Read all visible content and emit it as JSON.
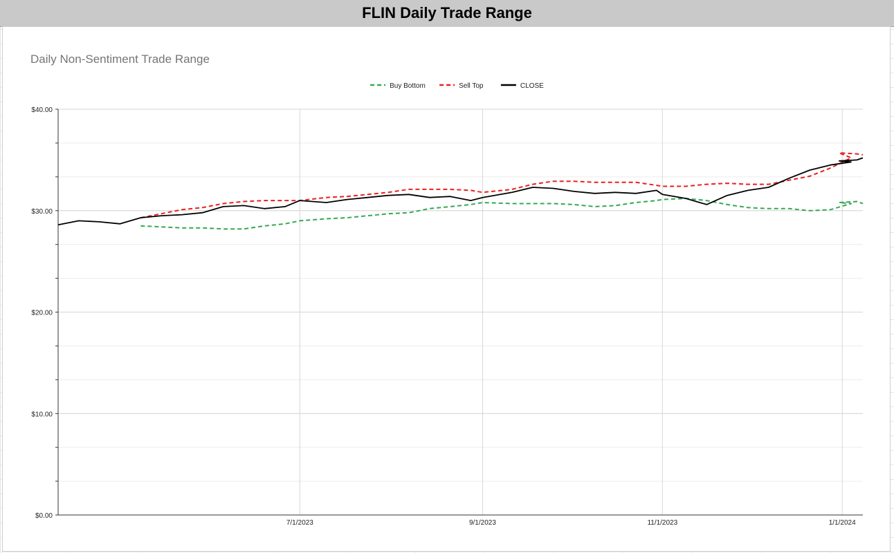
{
  "sheet_title": "FLIN Daily Trade Range",
  "chart_data": {
    "type": "line",
    "title": "Daily Non-Sentiment Trade Range",
    "xlabel": "",
    "ylabel": "",
    "ylim": [
      0,
      40
    ],
    "xlim": [
      "2023-04-10",
      "2024-01-08"
    ],
    "y_ticks": [
      0,
      10,
      20,
      30,
      40
    ],
    "y_tick_labels": [
      "$0.00",
      "$10.00",
      "$20.00",
      "$30.00",
      "$40.00"
    ],
    "x_ticks": [
      "2023-07-01",
      "2023-09-01",
      "2023-11-01",
      "2024-01-01"
    ],
    "x_tick_labels": [
      "7/1/2023",
      "9/1/2023",
      "11/1/2023",
      "1/1/2024"
    ],
    "grid": true,
    "legend_position": "top",
    "series": [
      {
        "name": "Buy Bottom",
        "color": "#34a853",
        "style": "dashed",
        "points": [
          [
            "2023-05-08",
            28.5
          ],
          [
            "2023-05-15",
            28.4
          ],
          [
            "2023-05-22",
            28.3
          ],
          [
            "2023-05-29",
            28.3
          ],
          [
            "2023-06-05",
            28.2
          ],
          [
            "2023-06-12",
            28.2
          ],
          [
            "2023-06-19",
            28.5
          ],
          [
            "2023-06-26",
            28.7
          ],
          [
            "2023-07-01",
            29.0
          ],
          [
            "2023-07-10",
            29.2
          ],
          [
            "2023-07-17",
            29.3
          ],
          [
            "2023-07-24",
            29.5
          ],
          [
            "2023-07-31",
            29.7
          ],
          [
            "2023-08-07",
            29.8
          ],
          [
            "2023-08-14",
            30.2
          ],
          [
            "2023-08-21",
            30.4
          ],
          [
            "2023-08-28",
            30.6
          ],
          [
            "2023-09-01",
            30.8
          ],
          [
            "2023-09-11",
            30.7
          ],
          [
            "2023-09-18",
            30.7
          ],
          [
            "2023-09-25",
            30.7
          ],
          [
            "2023-10-02",
            30.6
          ],
          [
            "2023-10-09",
            30.4
          ],
          [
            "2023-10-16",
            30.5
          ],
          [
            "2023-10-23",
            30.8
          ],
          [
            "2023-10-30",
            31.0
          ],
          [
            "2023-11-01",
            31.1
          ],
          [
            "2023-11-09",
            31.2
          ],
          [
            "2023-11-16",
            31.0
          ],
          [
            "2023-11-23",
            30.6
          ],
          [
            "2023-11-30",
            30.3
          ],
          [
            "2023-12-07",
            30.2
          ],
          [
            "2023-12-14",
            30.2
          ],
          [
            "2023-12-21",
            30.0
          ],
          [
            "2023-12-28",
            30.1
          ],
          [
            "2024-01-04",
            30.7
          ],
          [
            "2023-12-31",
            30.8
          ],
          [
            "2024-01-06",
            30.9
          ],
          [
            "2024-01-08",
            30.7
          ]
        ]
      },
      {
        "name": "Sell Top",
        "color": "#ea1f1f",
        "style": "dashed",
        "points": [
          [
            "2023-05-08",
            29.3
          ],
          [
            "2023-05-15",
            29.7
          ],
          [
            "2023-05-22",
            30.1
          ],
          [
            "2023-05-29",
            30.3
          ],
          [
            "2023-06-05",
            30.7
          ],
          [
            "2023-06-12",
            30.9
          ],
          [
            "2023-06-19",
            31.0
          ],
          [
            "2023-06-26",
            31.0
          ],
          [
            "2023-07-01",
            31.0
          ],
          [
            "2023-07-10",
            31.3
          ],
          [
            "2023-07-17",
            31.4
          ],
          [
            "2023-07-24",
            31.6
          ],
          [
            "2023-07-31",
            31.8
          ],
          [
            "2023-08-07",
            32.1
          ],
          [
            "2023-08-14",
            32.1
          ],
          [
            "2023-08-21",
            32.1
          ],
          [
            "2023-08-28",
            32.0
          ],
          [
            "2023-09-01",
            31.8
          ],
          [
            "2023-09-11",
            32.1
          ],
          [
            "2023-09-18",
            32.6
          ],
          [
            "2023-09-25",
            32.9
          ],
          [
            "2023-10-02",
            32.9
          ],
          [
            "2023-10-09",
            32.8
          ],
          [
            "2023-10-16",
            32.8
          ],
          [
            "2023-10-23",
            32.8
          ],
          [
            "2023-10-30",
            32.5
          ],
          [
            "2023-11-01",
            32.4
          ],
          [
            "2023-11-09",
            32.4
          ],
          [
            "2023-11-16",
            32.6
          ],
          [
            "2023-11-23",
            32.7
          ],
          [
            "2023-11-30",
            32.6
          ],
          [
            "2023-12-07",
            32.6
          ],
          [
            "2023-12-14",
            33.0
          ],
          [
            "2023-12-21",
            33.4
          ],
          [
            "2023-12-28",
            34.2
          ],
          [
            "2024-01-04",
            35.2
          ],
          [
            "2023-12-31",
            35.7
          ],
          [
            "2024-01-06",
            35.6
          ],
          [
            "2024-01-08",
            35.5
          ]
        ]
      },
      {
        "name": "CLOSE",
        "color": "#000000",
        "style": "solid",
        "points": [
          [
            "2023-04-10",
            28.6
          ],
          [
            "2023-04-17",
            29.0
          ],
          [
            "2023-04-24",
            28.9
          ],
          [
            "2023-05-01",
            28.7
          ],
          [
            "2023-05-08",
            29.3
          ],
          [
            "2023-05-15",
            29.5
          ],
          [
            "2023-05-22",
            29.6
          ],
          [
            "2023-05-29",
            29.8
          ],
          [
            "2023-06-05",
            30.4
          ],
          [
            "2023-06-12",
            30.5
          ],
          [
            "2023-06-19",
            30.2
          ],
          [
            "2023-06-26",
            30.4
          ],
          [
            "2023-07-01",
            31.0
          ],
          [
            "2023-07-10",
            30.8
          ],
          [
            "2023-07-17",
            31.1
          ],
          [
            "2023-07-24",
            31.3
          ],
          [
            "2023-07-31",
            31.5
          ],
          [
            "2023-08-07",
            31.6
          ],
          [
            "2023-08-14",
            31.3
          ],
          [
            "2023-08-21",
            31.4
          ],
          [
            "2023-08-28",
            31.0
          ],
          [
            "2023-09-01",
            31.3
          ],
          [
            "2023-09-11",
            31.8
          ],
          [
            "2023-09-18",
            32.3
          ],
          [
            "2023-09-25",
            32.2
          ],
          [
            "2023-10-02",
            31.9
          ],
          [
            "2023-10-09",
            31.7
          ],
          [
            "2023-10-16",
            31.8
          ],
          [
            "2023-10-23",
            31.7
          ],
          [
            "2023-10-30",
            32.0
          ],
          [
            "2023-11-01",
            31.6
          ],
          [
            "2023-11-09",
            31.2
          ],
          [
            "2023-11-16",
            30.6
          ],
          [
            "2023-11-23",
            31.5
          ],
          [
            "2023-11-30",
            32.0
          ],
          [
            "2023-12-07",
            32.3
          ],
          [
            "2023-12-14",
            33.2
          ],
          [
            "2023-12-21",
            34.0
          ],
          [
            "2023-12-28",
            34.5
          ],
          [
            "2024-01-04",
            34.8
          ],
          [
            "2023-12-31",
            34.9
          ],
          [
            "2024-01-06",
            35.0
          ],
          [
            "2024-01-08",
            35.2
          ]
        ]
      }
    ]
  }
}
